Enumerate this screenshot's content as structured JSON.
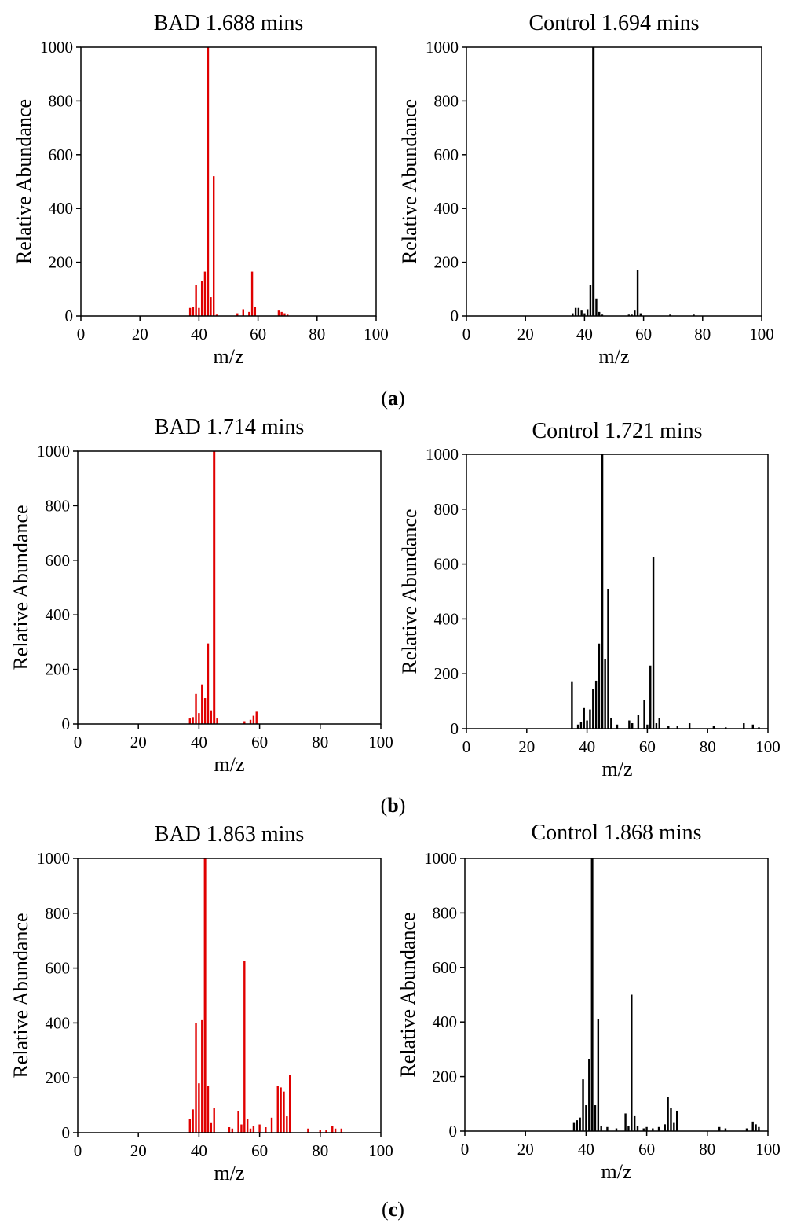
{
  "captions": [
    "(a)",
    "(b)",
    "(c)"
  ],
  "chart_data": [
    {
      "type": "bar",
      "title": "BAD 1.688 mins",
      "xlabel": "m/z",
      "ylabel": "Relative Abundance",
      "xlim": [
        0,
        100
      ],
      "ylim": [
        0,
        1000
      ],
      "xticks": [
        "0",
        "20",
        "40",
        "60",
        "80",
        "100"
      ],
      "yticks": [
        "0",
        "200",
        "400",
        "600",
        "800",
        "1000"
      ],
      "color": "#e00000",
      "grid": false,
      "x": [
        37,
        38,
        39,
        40,
        41,
        42,
        43,
        44,
        45,
        46,
        53,
        55,
        57,
        58,
        59,
        67,
        68,
        69,
        70
      ],
      "values": [
        30,
        35,
        115,
        30,
        130,
        165,
        1000,
        70,
        520,
        5,
        10,
        25,
        15,
        165,
        35,
        20,
        15,
        10,
        5
      ]
    },
    {
      "type": "bar",
      "title": "Control 1.694 mins",
      "xlabel": "m/z",
      "ylabel": "Relative Abundance",
      "xlim": [
        0,
        100
      ],
      "ylim": [
        0,
        1000
      ],
      "xticks": [
        "0",
        "20",
        "40",
        "60",
        "80",
        "100"
      ],
      "yticks": [
        "0",
        "200",
        "400",
        "600",
        "800",
        "1000"
      ],
      "color": "#000000",
      "grid": false,
      "x": [
        36,
        37,
        38,
        39,
        40,
        41,
        42,
        43,
        44,
        45,
        46,
        55,
        56,
        57,
        58,
        59,
        69,
        77
      ],
      "values": [
        10,
        30,
        30,
        20,
        10,
        25,
        115,
        1000,
        65,
        15,
        5,
        5,
        5,
        20,
        170,
        10,
        5,
        5
      ]
    },
    {
      "type": "bar",
      "title": "BAD 1.714 mins",
      "xlabel": "m/z",
      "ylabel": "Relative Abundance",
      "xlim": [
        0,
        100
      ],
      "ylim": [
        0,
        1000
      ],
      "xticks": [
        "0",
        "20",
        "40",
        "60",
        "80",
        "100"
      ],
      "yticks": [
        "0",
        "200",
        "400",
        "600",
        "800",
        "1000"
      ],
      "color": "#e00000",
      "grid": false,
      "x": [
        37,
        38,
        39,
        40,
        41,
        42,
        43,
        44,
        45,
        46,
        55,
        57,
        58,
        59
      ],
      "values": [
        20,
        25,
        110,
        40,
        145,
        95,
        295,
        50,
        1000,
        20,
        10,
        15,
        30,
        45
      ]
    },
    {
      "type": "bar",
      "title": "Control 1.721 mins",
      "xlabel": "m/z",
      "ylabel": "Relative Abundance",
      "xlim": [
        0,
        100
      ],
      "ylim": [
        0,
        1000
      ],
      "xticks": [
        "0",
        "20",
        "40",
        "60",
        "80",
        "100"
      ],
      "yticks": [
        "0",
        "200",
        "400",
        "600",
        "800",
        "1000"
      ],
      "color": "#000000",
      "grid": false,
      "x": [
        35,
        37,
        38,
        39,
        40,
        41,
        42,
        43,
        44,
        45,
        46,
        47,
        48,
        50,
        54,
        55,
        57,
        59,
        60,
        61,
        62,
        63,
        64,
        67,
        70,
        74,
        82,
        86,
        92,
        95,
        97
      ],
      "values": [
        170,
        15,
        25,
        75,
        30,
        70,
        145,
        175,
        310,
        1000,
        255,
        510,
        40,
        15,
        30,
        20,
        50,
        105,
        15,
        230,
        625,
        20,
        40,
        10,
        10,
        20,
        10,
        5,
        20,
        15,
        5
      ]
    },
    {
      "type": "bar",
      "title": "BAD 1.863 mins",
      "xlabel": "m/z",
      "ylabel": "Relative Abundance",
      "xlim": [
        0,
        100
      ],
      "ylim": [
        0,
        1000
      ],
      "xticks": [
        "0",
        "20",
        "40",
        "60",
        "80",
        "100"
      ],
      "yticks": [
        "0",
        "200",
        "400",
        "600",
        "800",
        "1000"
      ],
      "color": "#e00000",
      "grid": false,
      "x": [
        37,
        38,
        39,
        40,
        41,
        42,
        43,
        44,
        45,
        50,
        51,
        53,
        54,
        55,
        56,
        57,
        58,
        60,
        62,
        64,
        66,
        67,
        68,
        69,
        70,
        76,
        80,
        82,
        84,
        85,
        87
      ],
      "values": [
        50,
        85,
        400,
        180,
        410,
        1000,
        170,
        35,
        90,
        20,
        15,
        80,
        30,
        625,
        50,
        15,
        25,
        30,
        20,
        55,
        170,
        165,
        150,
        60,
        210,
        15,
        10,
        10,
        25,
        15,
        15
      ]
    },
    {
      "type": "bar",
      "title": "Control 1.868 mins",
      "xlabel": "m/z",
      "ylabel": "Relative Abundance",
      "xlim": [
        0,
        100
      ],
      "ylim": [
        0,
        1000
      ],
      "xticks": [
        "0",
        "20",
        "40",
        "60",
        "80",
        "100"
      ],
      "yticks": [
        "0",
        "200",
        "400",
        "600",
        "800",
        "1000"
      ],
      "color": "#000000",
      "grid": false,
      "x": [
        36,
        37,
        38,
        39,
        40,
        41,
        42,
        43,
        44,
        45,
        47,
        50,
        53,
        54,
        55,
        56,
        57,
        59,
        60,
        62,
        64,
        66,
        67,
        68,
        69,
        70,
        84,
        86,
        93,
        95,
        96,
        97
      ],
      "values": [
        30,
        40,
        50,
        190,
        95,
        265,
        1000,
        95,
        410,
        20,
        15,
        10,
        65,
        20,
        500,
        55,
        20,
        10,
        15,
        10,
        15,
        25,
        125,
        85,
        30,
        75,
        15,
        10,
        10,
        35,
        25,
        15
      ]
    }
  ]
}
